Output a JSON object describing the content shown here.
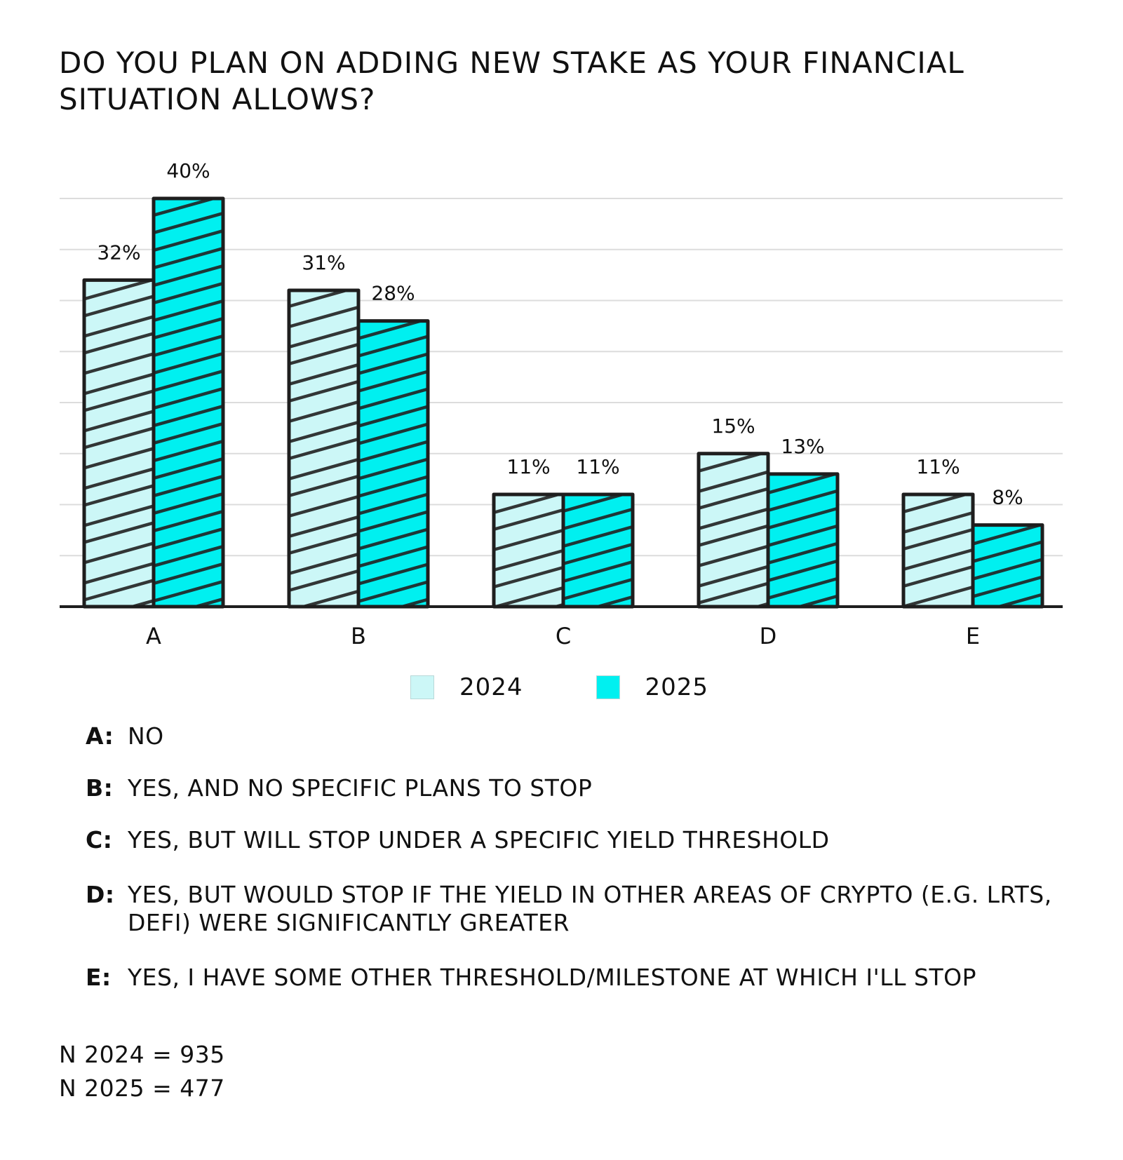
{
  "title": "DO YOU PLAN ON ADDING NEW STAKE AS YOUR FINANCIAL SITUATION ALLOWS?",
  "colors": {
    "series_2024": "#ccf7f7",
    "series_2025": "#00f0f0",
    "outline": "#1e1e1e",
    "hatch": "#222222",
    "grid": "#dcdcdc"
  },
  "chart_data": {
    "type": "bar",
    "categories": [
      "A",
      "B",
      "C",
      "D",
      "E"
    ],
    "series": [
      {
        "name": "2024",
        "values": [
          32,
          31,
          11,
          15,
          11
        ],
        "labels": [
          "32%",
          "31%",
          "11%",
          "15%",
          "11%"
        ]
      },
      {
        "name": "2025",
        "values": [
          40,
          28,
          11,
          13,
          8
        ],
        "labels": [
          "40%",
          "28%",
          "11%",
          "13%",
          "8%"
        ]
      }
    ],
    "ylim": [
      0,
      40
    ],
    "grid": true,
    "legend_position": "bottom"
  },
  "legend": [
    {
      "label": "2024"
    },
    {
      "label": "2025"
    }
  ],
  "notes": [
    {
      "key": "A:",
      "text": "NO"
    },
    {
      "key": "B:",
      "text": "YES, AND NO SPECIFIC PLANS TO STOP"
    },
    {
      "key": "C:",
      "text": "YES, BUT WILL STOP UNDER A SPECIFIC YIELD THRESHOLD"
    },
    {
      "key": "D:",
      "text": "YES, BUT WOULD STOP IF THE YIELD IN OTHER AREAS OF CRYPTO (E.G. LRTS, DEFI) WERE SIGNIFICANTLY GREATER"
    },
    {
      "key": "E:",
      "text": "YES, I HAVE SOME OTHER THRESHOLD/MILESTONE AT WHICH I'LL STOP"
    }
  ],
  "samples": [
    "N 2024 = 935",
    "N 2025 = 477"
  ]
}
